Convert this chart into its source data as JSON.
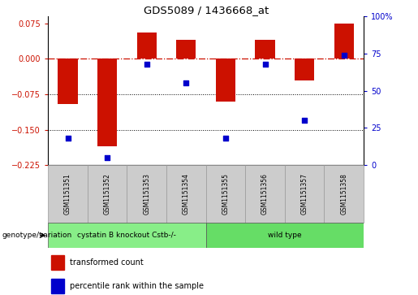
{
  "title": "GDS5089 / 1436668_at",
  "samples": [
    "GSM1151351",
    "GSM1151352",
    "GSM1151353",
    "GSM1151354",
    "GSM1151355",
    "GSM1151356",
    "GSM1151357",
    "GSM1151358"
  ],
  "bar_values": [
    -0.095,
    -0.185,
    0.055,
    0.04,
    -0.09,
    0.04,
    -0.045,
    0.075
  ],
  "percentile_values": [
    18,
    5,
    68,
    55,
    18,
    68,
    30,
    74
  ],
  "bar_color": "#cc1100",
  "scatter_color": "#0000cc",
  "ylim_left": [
    -0.225,
    0.09
  ],
  "ylim_right": [
    0,
    100
  ],
  "yticks_left": [
    0.075,
    0,
    -0.075,
    -0.15,
    -0.225
  ],
  "yticks_right": [
    100,
    75,
    50,
    25,
    0
  ],
  "hline_zero_color": "#cc1100",
  "hline_dotted_color": "#000000",
  "hline_dotted_values": [
    -0.075,
    -0.15
  ],
  "group1_label": "cystatin B knockout Cstb-/-",
  "group1_count": 4,
  "group2_label": "wild type",
  "group2_count": 4,
  "group_row_label": "genotype/variation",
  "legend_bar_label": "transformed count",
  "legend_scatter_label": "percentile rank within the sample",
  "bar_width": 0.5,
  "background_color": "#ffffff",
  "group1_color": "#88ee88",
  "group2_color": "#66dd66",
  "xlabel_bg_color": "#cccccc"
}
